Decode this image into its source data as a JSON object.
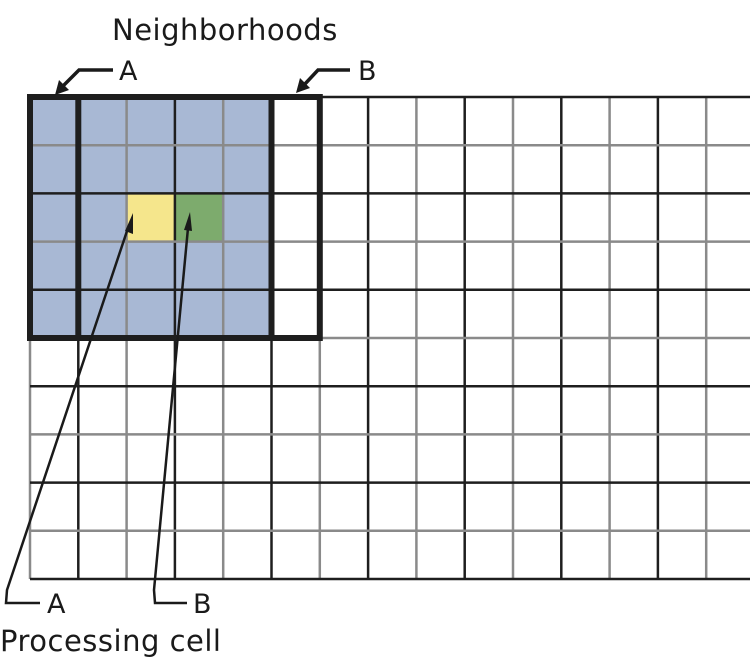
{
  "title": "Neighborhoods",
  "neighborhood_labels": {
    "a": "A",
    "b": "B"
  },
  "processing_labels": {
    "a": "A",
    "b": "B"
  },
  "caption": "Processing cell",
  "colors": {
    "neighborhood_fill": "#a8b8d4",
    "cell_a_fill": "#f5e68c",
    "cell_b_fill": "#7dab6d",
    "grid_dark": "#1e1e1e",
    "grid_gray": "#8a8a8a",
    "outline": "#1e1e1e",
    "text": "#1a1a1a"
  },
  "grid": {
    "columns": 15,
    "rows": 10
  },
  "neighborhood_a": {
    "col_start": 0,
    "col_end": 4,
    "row_start": 0,
    "row_end": 4
  },
  "neighborhood_b": {
    "col_start": 1,
    "col_end": 5,
    "row_start": 0,
    "row_end": 4
  },
  "processing_cell_a": {
    "col": 2,
    "row": 2
  },
  "processing_cell_b": {
    "col": 3,
    "row": 2
  }
}
